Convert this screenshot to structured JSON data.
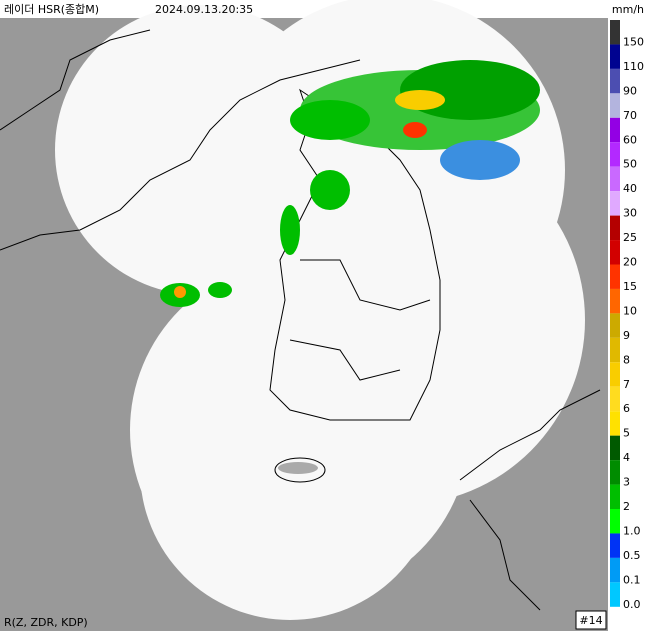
{
  "header": {
    "title": "레이더 HSR(종합M)",
    "timestamp": "2024.09.13.20:35"
  },
  "legend": {
    "unit": "mm/h",
    "levels": [
      {
        "label": "150",
        "color": "#333333"
      },
      {
        "label": "110",
        "color": "#000390"
      },
      {
        "label": "90",
        "color": "#4c4eb1"
      },
      {
        "label": "70",
        "color": "#b3b4de"
      },
      {
        "label": "60",
        "color": "#9300e4"
      },
      {
        "label": "50",
        "color": "#b329ff"
      },
      {
        "label": "40",
        "color": "#c969ff"
      },
      {
        "label": "30",
        "color": "#e0a9ff"
      },
      {
        "label": "25",
        "color": "#b40000"
      },
      {
        "label": "20",
        "color": "#d20000"
      },
      {
        "label": "15",
        "color": "#ff3300"
      },
      {
        "label": "10",
        "color": "#ff6600"
      },
      {
        "label": "9",
        "color": "#ccaa00"
      },
      {
        "label": "8",
        "color": "#e0b900"
      },
      {
        "label": "7",
        "color": "#f9cd00"
      },
      {
        "label": "6",
        "color": "#ffdc1f"
      },
      {
        "label": "5",
        "color": "#ffe100"
      },
      {
        "label": "4",
        "color": "#005a00"
      },
      {
        "label": "3",
        "color": "#008c00"
      },
      {
        "label": "2",
        "color": "#00be00"
      },
      {
        "label": "1.0",
        "color": "#00ff00"
      },
      {
        "label": "0.5",
        "color": "#0033f5"
      },
      {
        "label": "0.1",
        "color": "#009bf5"
      },
      {
        "label": "0.0",
        "color": "#00c8ff"
      }
    ]
  },
  "footer": {
    "variables": "R(Z, ZDR, KDP)",
    "frame": "#14"
  }
}
